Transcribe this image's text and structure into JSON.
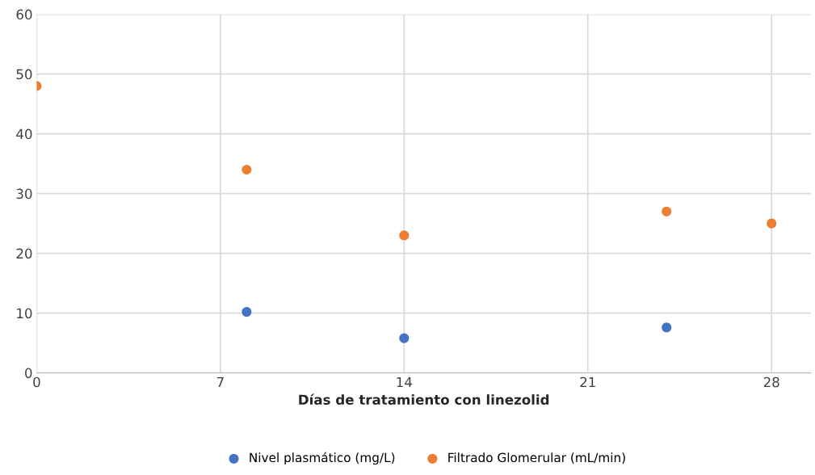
{
  "chart_data": {
    "type": "scatter",
    "xlabel": "Días de tratamiento con linezolid",
    "series": [
      {
        "name": "Nivel plasmático (mg/L)",
        "color": "#4472c4",
        "x": [
          8,
          14,
          24
        ],
        "values": [
          10.2,
          5.8,
          7.6
        ]
      },
      {
        "name": "Filtrado Glomerular (mL/min)",
        "color": "#ed7d31",
        "x": [
          0,
          8,
          14,
          24,
          28
        ],
        "values": [
          48,
          34,
          23,
          27,
          25
        ]
      }
    ],
    "xlim": [
      0,
      29.5
    ],
    "xticks": [
      0,
      7,
      14,
      21,
      28
    ],
    "ylim": [
      0,
      60
    ],
    "yticks": [
      0,
      10,
      20,
      30,
      40,
      50,
      60
    ],
    "grid": true,
    "legend": "bottom",
    "marker": "circle"
  }
}
